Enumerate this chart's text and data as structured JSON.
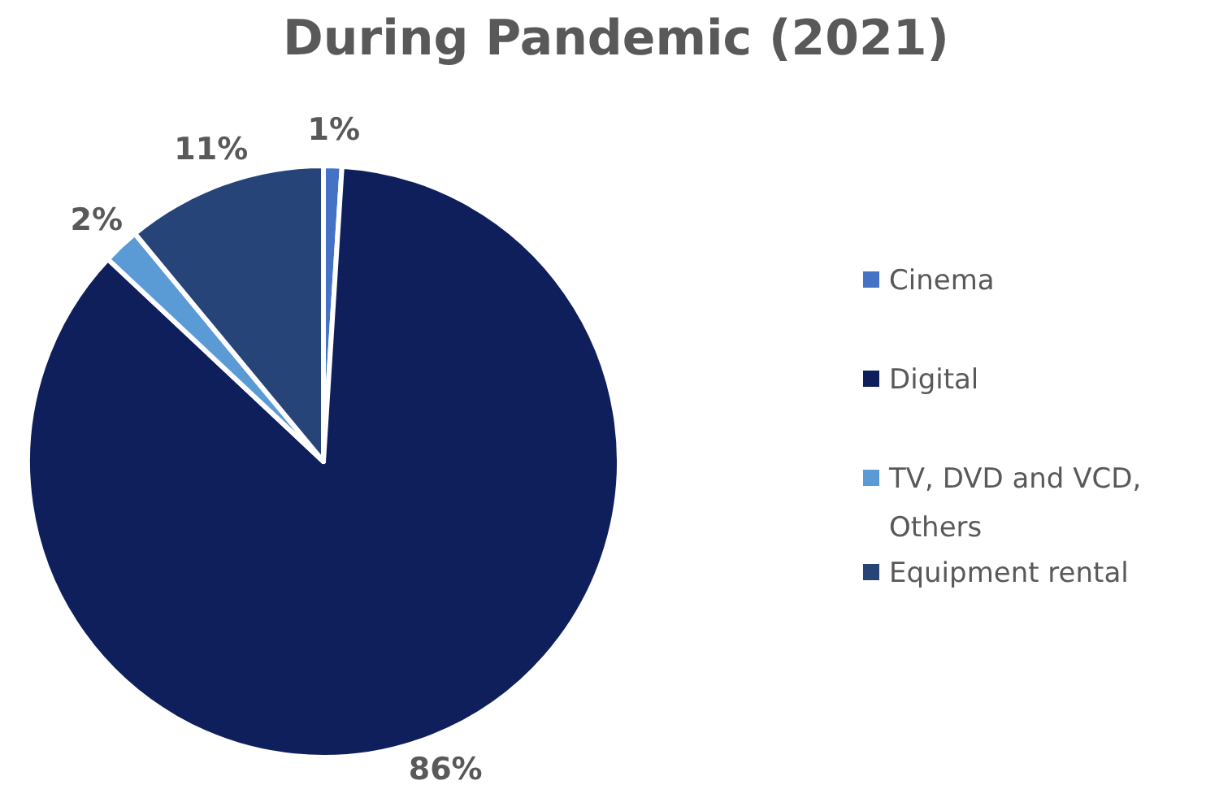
{
  "chart_data": {
    "type": "pie",
    "title": "During Pandemic (2021)",
    "categories": [
      "Cinema",
      "Digital",
      "TV, DVD and VCD, Others",
      "Equipment rental"
    ],
    "values": [
      1,
      86,
      2,
      11
    ],
    "colors": [
      "#4472c4",
      "#0f1f5c",
      "#5b9bd5",
      "#264478"
    ],
    "value_labels": [
      "1%",
      "86%",
      "2%",
      "11%"
    ],
    "legend": "right"
  }
}
